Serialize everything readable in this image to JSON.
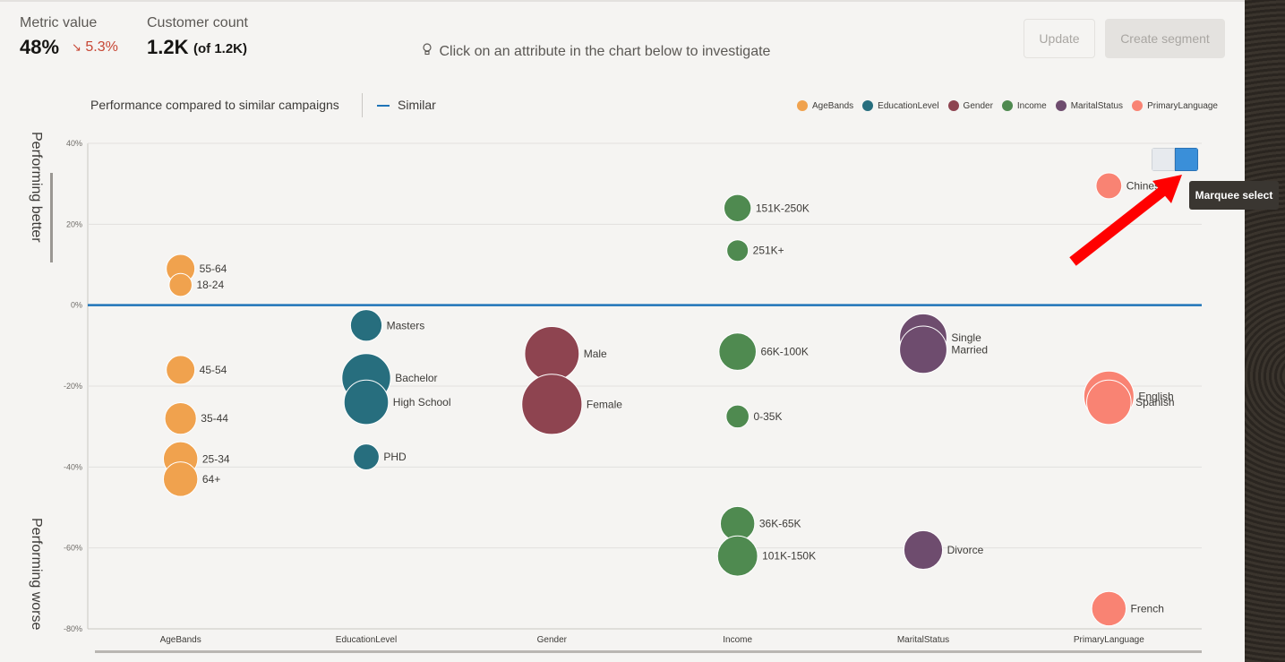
{
  "header": {
    "metric_label": "Metric value",
    "metric_value": "48%",
    "metric_delta": "5.3%",
    "customer_label": "Customer count",
    "customer_value": "1.2K",
    "customer_of": "(of 1.2K)",
    "hint": "Click on an attribute in the chart below to investigate",
    "update_label": "Update",
    "create_segment_label": "Create segment"
  },
  "perf": {
    "title": "Performance compared to similar campaigns",
    "similar_label": "Similar",
    "better_label": "Performing better",
    "worse_label": "Performing worse"
  },
  "tooltip": {
    "text": "Marquee select"
  },
  "chart_data": {
    "type": "scatter",
    "title": "",
    "xlabel": "",
    "ylabel": "",
    "ylim": [
      -80,
      40
    ],
    "yticks": [
      "40%",
      "20%",
      "0%",
      "-20%",
      "-40%",
      "-60%",
      "-80%"
    ],
    "ytick_values": [
      40,
      20,
      0,
      -20,
      -40,
      -60,
      -80
    ],
    "reference_line": {
      "name": "Similar",
      "y": 0,
      "color": "#1f74b8"
    },
    "categories": [
      "AgeBands",
      "EducationLevel",
      "Gender",
      "Income",
      "MaritalStatus",
      "PrimaryLanguage"
    ],
    "legend": [
      {
        "name": "AgeBands",
        "color": "#f0a24e"
      },
      {
        "name": "EducationLevel",
        "color": "#276e7e"
      },
      {
        "name": "Gender",
        "color": "#8e4450"
      },
      {
        "name": "Income",
        "color": "#4f8a50"
      },
      {
        "name": "MaritalStatus",
        "color": "#6e4c6e"
      },
      {
        "name": "PrimaryLanguage",
        "color": "#f98373"
      }
    ],
    "legend_position": "top-right",
    "series": [
      {
        "name": "AgeBands",
        "points": [
          {
            "label": "55-64",
            "y": 9,
            "size": 2
          },
          {
            "label": "18-24",
            "y": 5,
            "size": 1.6
          },
          {
            "label": "45-54",
            "y": -16,
            "size": 2
          },
          {
            "label": "35-44",
            "y": -28,
            "size": 2.2
          },
          {
            "label": "25-34",
            "y": -38,
            "size": 2.4
          },
          {
            "label": "64+",
            "y": -43,
            "size": 2.4
          }
        ]
      },
      {
        "name": "EducationLevel",
        "points": [
          {
            "label": "Masters",
            "y": -5,
            "size": 2.2
          },
          {
            "label": "Bachelor",
            "y": -18,
            "size": 3.4
          },
          {
            "label": "High School",
            "y": -24,
            "size": 3.1
          },
          {
            "label": "PHD",
            "y": -37.5,
            "size": 1.8
          }
        ]
      },
      {
        "name": "Gender",
        "points": [
          {
            "label": "Male",
            "y": -12,
            "size": 3.8
          },
          {
            "label": "Female",
            "y": -24.5,
            "size": 4.2
          }
        ]
      },
      {
        "name": "Income",
        "points": [
          {
            "label": "151K-250K",
            "y": 24,
            "size": 1.9
          },
          {
            "label": "251K+",
            "y": 13.5,
            "size": 1.5
          },
          {
            "label": "66K-100K",
            "y": -11.5,
            "size": 2.6
          },
          {
            "label": "0-35K",
            "y": -27.5,
            "size": 1.6
          },
          {
            "label": "36K-65K",
            "y": -54,
            "size": 2.4
          },
          {
            "label": "101K-150K",
            "y": -62,
            "size": 2.8
          }
        ]
      },
      {
        "name": "MaritalStatus",
        "points": [
          {
            "label": "Single",
            "y": -8,
            "size": 3.3
          },
          {
            "label": "Married",
            "y": -11,
            "size": 3.3
          },
          {
            "label": "Divorce",
            "y": -60.5,
            "size": 2.7
          }
        ]
      },
      {
        "name": "PrimaryLanguage",
        "points": [
          {
            "label": "Chinese",
            "y": 29.5,
            "size": 1.8
          },
          {
            "label": "English",
            "y": -22.5,
            "size": 3.5
          },
          {
            "label": "Spanish",
            "y": -24,
            "size": 3.1
          },
          {
            "label": "French",
            "y": -75,
            "size": 2.4
          }
        ]
      }
    ],
    "grid": true
  }
}
